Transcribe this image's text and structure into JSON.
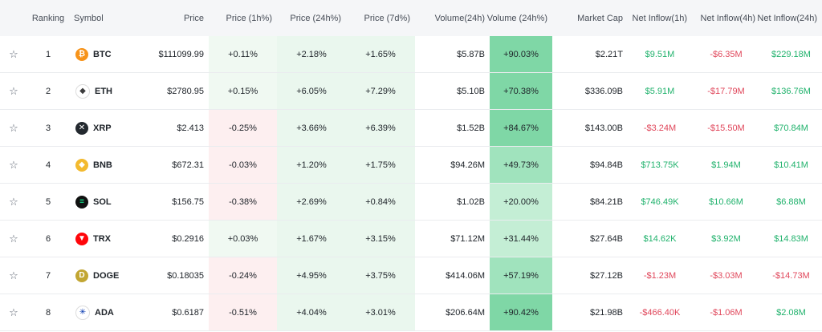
{
  "headers": {
    "ranking": "Ranking",
    "symbol": "Symbol",
    "price": "Price",
    "price_1h": "Price (1h%)",
    "price_24h": "Price (24h%)",
    "price_7d": "Price (7d%)",
    "volume_24h": "Volume(24h)",
    "volume_24h_pct": "Volume (24h%)",
    "market_cap": "Market Cap",
    "net_inflow_1h": "Net Inflow(1h)",
    "net_inflow_4h": "Net Inflow(4h)",
    "net_inflow_24h": "Net Inflow(24h)"
  },
  "icons": {
    "star": "star-outline-icon",
    "BTC": "bitcoin-icon",
    "ETH": "ethereum-icon",
    "XRP": "xrp-icon",
    "BNB": "bnb-icon",
    "SOL": "solana-icon",
    "TRX": "tron-icon",
    "DOGE": "dogecoin-icon",
    "ADA": "cardano-icon"
  },
  "colors": {
    "positive": "#20b26c",
    "negative": "#e0475b",
    "header_bg": "#f5f6f8"
  },
  "rows": [
    {
      "rank": "1",
      "symbol": "BTC",
      "price": "$111099.99",
      "p1h": "+0.11%",
      "p24h": "+2.18%",
      "p7d": "+1.65%",
      "vol": "$5.87B",
      "volpct": "+90.03%",
      "mcap": "$2.21T",
      "in1h": "$9.51M",
      "in4h": "-$6.35M",
      "in24h": "$229.18M"
    },
    {
      "rank": "2",
      "symbol": "ETH",
      "price": "$2780.95",
      "p1h": "+0.15%",
      "p24h": "+6.05%",
      "p7d": "+7.29%",
      "vol": "$5.10B",
      "volpct": "+70.38%",
      "mcap": "$336.09B",
      "in1h": "$5.91M",
      "in4h": "-$17.79M",
      "in24h": "$136.76M"
    },
    {
      "rank": "3",
      "symbol": "XRP",
      "price": "$2.413",
      "p1h": "-0.25%",
      "p24h": "+3.66%",
      "p7d": "+6.39%",
      "vol": "$1.52B",
      "volpct": "+84.67%",
      "mcap": "$143.00B",
      "in1h": "-$3.24M",
      "in4h": "-$15.50M",
      "in24h": "$70.84M"
    },
    {
      "rank": "4",
      "symbol": "BNB",
      "price": "$672.31",
      "p1h": "-0.03%",
      "p24h": "+1.20%",
      "p7d": "+1.75%",
      "vol": "$94.26M",
      "volpct": "+49.73%",
      "mcap": "$94.84B",
      "in1h": "$713.75K",
      "in4h": "$1.94M",
      "in24h": "$10.41M"
    },
    {
      "rank": "5",
      "symbol": "SOL",
      "price": "$156.75",
      "p1h": "-0.38%",
      "p24h": "+2.69%",
      "p7d": "+0.84%",
      "vol": "$1.02B",
      "volpct": "+20.00%",
      "mcap": "$84.21B",
      "in1h": "$746.49K",
      "in4h": "$10.66M",
      "in24h": "$6.88M"
    },
    {
      "rank": "6",
      "symbol": "TRX",
      "price": "$0.2916",
      "p1h": "+0.03%",
      "p24h": "+1.67%",
      "p7d": "+3.15%",
      "vol": "$71.12M",
      "volpct": "+31.44%",
      "mcap": "$27.64B",
      "in1h": "$14.62K",
      "in4h": "$3.92M",
      "in24h": "$14.83M"
    },
    {
      "rank": "7",
      "symbol": "DOGE",
      "price": "$0.18035",
      "p1h": "-0.24%",
      "p24h": "+4.95%",
      "p7d": "+3.75%",
      "vol": "$414.06M",
      "volpct": "+57.19%",
      "mcap": "$27.12B",
      "in1h": "-$1.23M",
      "in4h": "-$3.03M",
      "in24h": "-$14.73M"
    },
    {
      "rank": "8",
      "symbol": "ADA",
      "price": "$0.6187",
      "p1h": "-0.51%",
      "p24h": "+4.04%",
      "p7d": "+3.01%",
      "vol": "$206.64M",
      "volpct": "+90.42%",
      "mcap": "$21.98B",
      "in1h": "-$466.40K",
      "in4h": "-$1.06M",
      "in24h": "$2.08M"
    }
  ]
}
